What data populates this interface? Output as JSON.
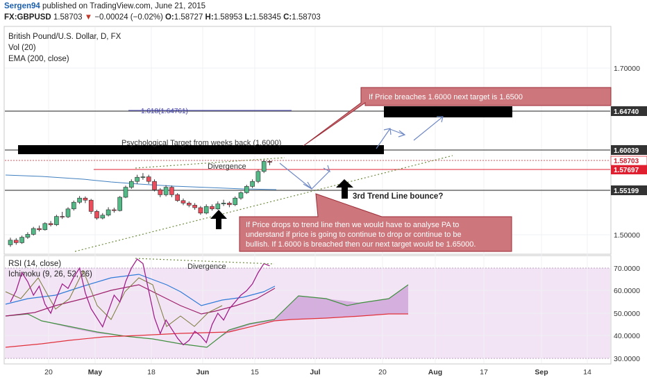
{
  "header": {
    "author": "Sergen94",
    "published_text": "published on TradingView.com, June 21, 2015",
    "symbol": "FX:GBPUSD",
    "last": "1.58703",
    "change": "−0.00024 (−0.02%)",
    "ohlc": {
      "o_label": "O:",
      "o": "1.58727",
      "h_label": "H:",
      "h": "1.58953",
      "l_label": "L:",
      "l": "1.58345",
      "c_label": "C:",
      "c": "1.58703"
    }
  },
  "legend": {
    "title": "British Pound/U.S. Dollar, D, FX",
    "vol": "Vol (20)",
    "ema": "EMA (200, close)",
    "rsi": "RSI (14, close)",
    "ichimoku": "Ichimoku (9, 26, 52, 26)"
  },
  "price_axis": {
    "ticks": [
      "1.70000",
      "1.50000"
    ],
    "badges": [
      {
        "text": "1.64740",
        "style": "dark"
      },
      {
        "text": "1.60039",
        "style": "dark"
      },
      {
        "text": "1.58703",
        "style": "red"
      },
      {
        "text": "1.57697",
        "style": "red"
      },
      {
        "text": "1.55199",
        "style": "dark"
      }
    ]
  },
  "rsi_axis": {
    "ticks": [
      "70.0000",
      "60.0000",
      "50.0000",
      "40.0000",
      "30.0000"
    ]
  },
  "time_axis": {
    "labels": [
      "20",
      "May",
      "18",
      "Jun",
      "15",
      "Jul",
      "20",
      "Aug",
      "17",
      "Sep",
      "14"
    ]
  },
  "annotations": {
    "fib": "1.618(1.64761)",
    "psych": "Psychological Target from weeks back (1.6000)",
    "divergence_price": "Divergence",
    "divergence_rsi": "Divergence",
    "third_trend": "3rd Trend Line bounce?",
    "callout_top": "If Price breaches 1.6000 next target is 1.6500",
    "callout_bottom": [
      "If Price drops to trend line then we would have to analyse PA to",
      "understand if price is going to continue to drop or continue to be",
      "bullish. If 1.6000 is breached then our next target would be 1.65000."
    ]
  },
  "colors": {
    "up": "#53b987",
    "down": "#eb4d5c",
    "callout_fill": "#cd767b",
    "callout_border": "#9b2b36",
    "rsi_band": "#f3e4f5",
    "cloud": "#cfa6d8",
    "tenkan": "#2e7bd8",
    "kijun": "#9c1f6a",
    "chikou": "#7a7a3a",
    "senkou_a": "#3e8f3e",
    "senkou_b": "#e0303a",
    "rsi_line": "#a0208a"
  },
  "chart_data": {
    "type": "candlestick",
    "title": "British Pound/U.S. Dollar, D, FX",
    "symbol": "FX:GBPUSD",
    "price_levels": {
      "fib_1618": 1.64761,
      "target": 1.6474,
      "psychological": 1.60039,
      "last": 1.58703,
      "red_line": 1.57697,
      "support": 1.55199
    },
    "candles": [
      {
        "o": 1.488,
        "c": 1.4935,
        "h": 1.4965,
        "l": 1.4855
      },
      {
        "o": 1.4935,
        "c": 1.4905,
        "h": 1.496,
        "l": 1.488
      },
      {
        "o": 1.4905,
        "c": 1.497,
        "h": 1.499,
        "l": 1.489
      },
      {
        "o": 1.497,
        "c": 1.5005,
        "h": 1.503,
        "l": 1.495
      },
      {
        "o": 1.5005,
        "c": 1.5075,
        "h": 1.5095,
        "l": 1.499
      },
      {
        "o": 1.5075,
        "c": 1.506,
        "h": 1.511,
        "l": 1.504
      },
      {
        "o": 1.506,
        "c": 1.5135,
        "h": 1.515,
        "l": 1.505
      },
      {
        "o": 1.5135,
        "c": 1.512,
        "h": 1.5165,
        "l": 1.51
      },
      {
        "o": 1.512,
        "c": 1.522,
        "h": 1.524,
        "l": 1.5105
      },
      {
        "o": 1.522,
        "c": 1.5215,
        "h": 1.5275,
        "l": 1.519
      },
      {
        "o": 1.5215,
        "c": 1.531,
        "h": 1.533,
        "l": 1.52
      },
      {
        "o": 1.531,
        "c": 1.539,
        "h": 1.541,
        "l": 1.529
      },
      {
        "o": 1.539,
        "c": 1.544,
        "h": 1.5465,
        "l": 1.537
      },
      {
        "o": 1.544,
        "c": 1.5415,
        "h": 1.546,
        "l": 1.538
      },
      {
        "o": 1.5415,
        "c": 1.528,
        "h": 1.543,
        "l": 1.525
      },
      {
        "o": 1.528,
        "c": 1.52,
        "h": 1.53,
        "l": 1.518
      },
      {
        "o": 1.52,
        "c": 1.5235,
        "h": 1.526,
        "l": 1.5185
      },
      {
        "o": 1.5235,
        "c": 1.53,
        "h": 1.533,
        "l": 1.522
      },
      {
        "o": 1.53,
        "c": 1.529,
        "h": 1.5325,
        "l": 1.5265
      },
      {
        "o": 1.529,
        "c": 1.545,
        "h": 1.5465,
        "l": 1.528
      },
      {
        "o": 1.545,
        "c": 1.557,
        "h": 1.559,
        "l": 1.544
      },
      {
        "o": 1.557,
        "c": 1.564,
        "h": 1.5665,
        "l": 1.555
      },
      {
        "o": 1.564,
        "c": 1.569,
        "h": 1.572,
        "l": 1.561
      },
      {
        "o": 1.569,
        "c": 1.5695,
        "h": 1.574,
        "l": 1.566
      },
      {
        "o": 1.5695,
        "c": 1.564,
        "h": 1.572,
        "l": 1.561
      },
      {
        "o": 1.564,
        "c": 1.554,
        "h": 1.5665,
        "l": 1.552
      },
      {
        "o": 1.554,
        "c": 1.548,
        "h": 1.556,
        "l": 1.545
      },
      {
        "o": 1.548,
        "c": 1.557,
        "h": 1.5595,
        "l": 1.546
      },
      {
        "o": 1.557,
        "c": 1.548,
        "h": 1.559,
        "l": 1.545
      },
      {
        "o": 1.548,
        "c": 1.541,
        "h": 1.55,
        "l": 1.5395
      },
      {
        "o": 1.541,
        "c": 1.538,
        "h": 1.5435,
        "l": 1.5355
      },
      {
        "o": 1.538,
        "c": 1.5355,
        "h": 1.54,
        "l": 1.533
      },
      {
        "o": 1.5355,
        "c": 1.5325,
        "h": 1.538,
        "l": 1.53
      },
      {
        "o": 1.5325,
        "c": 1.526,
        "h": 1.5345,
        "l": 1.524
      },
      {
        "o": 1.526,
        "c": 1.534,
        "h": 1.5365,
        "l": 1.5245
      },
      {
        "o": 1.534,
        "c": 1.531,
        "h": 1.5365,
        "l": 1.529
      },
      {
        "o": 1.531,
        "c": 1.537,
        "h": 1.54,
        "l": 1.53
      },
      {
        "o": 1.537,
        "c": 1.538,
        "h": 1.542,
        "l": 1.5345
      },
      {
        "o": 1.538,
        "c": 1.536,
        "h": 1.54,
        "l": 1.533
      },
      {
        "o": 1.536,
        "c": 1.544,
        "h": 1.546,
        "l": 1.5345
      },
      {
        "o": 1.544,
        "c": 1.5505,
        "h": 1.552,
        "l": 1.542
      },
      {
        "o": 1.5505,
        "c": 1.558,
        "h": 1.56,
        "l": 1.549
      },
      {
        "o": 1.558,
        "c": 1.564,
        "h": 1.5665,
        "l": 1.556
      },
      {
        "o": 1.564,
        "c": 1.576,
        "h": 1.578,
        "l": 1.562
      },
      {
        "o": 1.576,
        "c": 1.588,
        "h": 1.59,
        "l": 1.574
      },
      {
        "o": 1.588,
        "c": 1.587,
        "h": 1.5895,
        "l": 1.5834
      }
    ],
    "rsi": [
      55,
      60,
      68,
      64,
      58,
      62,
      54,
      50,
      57,
      63,
      61,
      66,
      70,
      59,
      52,
      48,
      44,
      51,
      58,
      55,
      64,
      70,
      74,
      72,
      60,
      48,
      41,
      47,
      43,
      39,
      36,
      38,
      42,
      40,
      37,
      45,
      50,
      47,
      52,
      55,
      58,
      60,
      63,
      68,
      72,
      71
    ]
  }
}
